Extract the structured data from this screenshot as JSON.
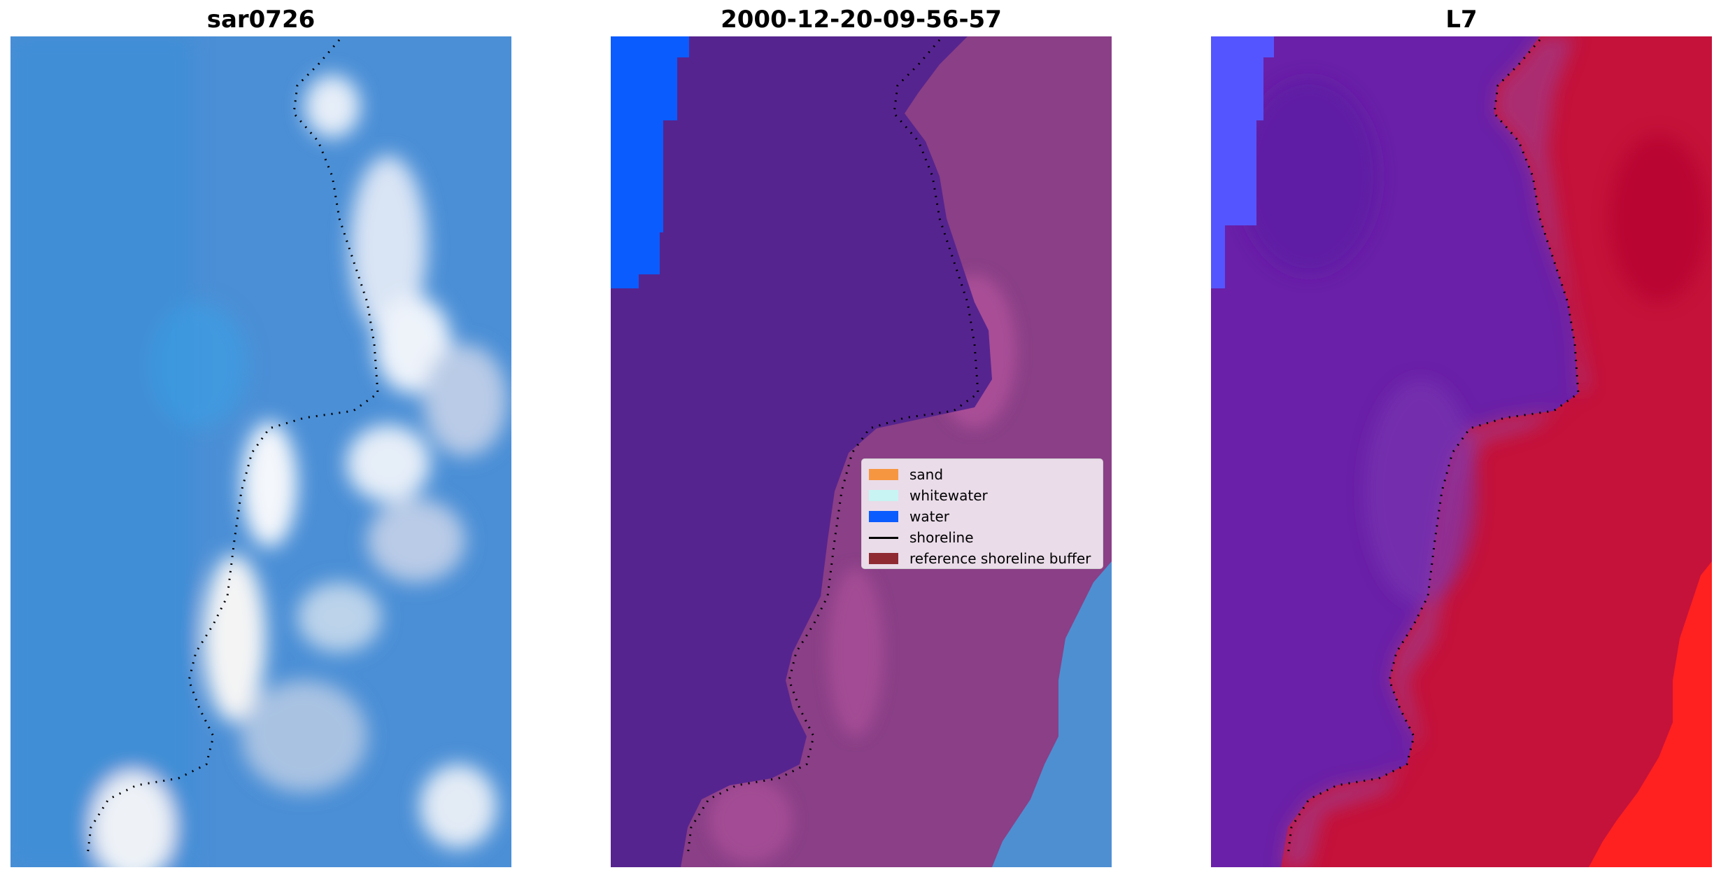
{
  "panels": [
    {
      "title": "sar0726"
    },
    {
      "title": "2000-12-20-09-56-57"
    },
    {
      "title": "L7"
    }
  ],
  "legend": {
    "items": [
      {
        "label": "sand",
        "color": "#f79641"
      },
      {
        "label": "whitewater",
        "color": "#c8f4f3"
      },
      {
        "label": "water",
        "color": "#0b5cff"
      },
      {
        "label": "shoreline",
        "color": "#000000"
      },
      {
        "label": "reference shoreline buffer",
        "color": "#8f2a33"
      }
    ]
  },
  "colors": {
    "sar_water": "#4b8fd6",
    "sar_foam": "#dfe8f5",
    "class_water": "#0b5cff",
    "class_land_dark": "#56248f",
    "class_land_pink": "#8a3f86",
    "l7_purple": "#6a20a8",
    "l7_red": "#c4123a",
    "l7_blue": "#5555ff"
  }
}
